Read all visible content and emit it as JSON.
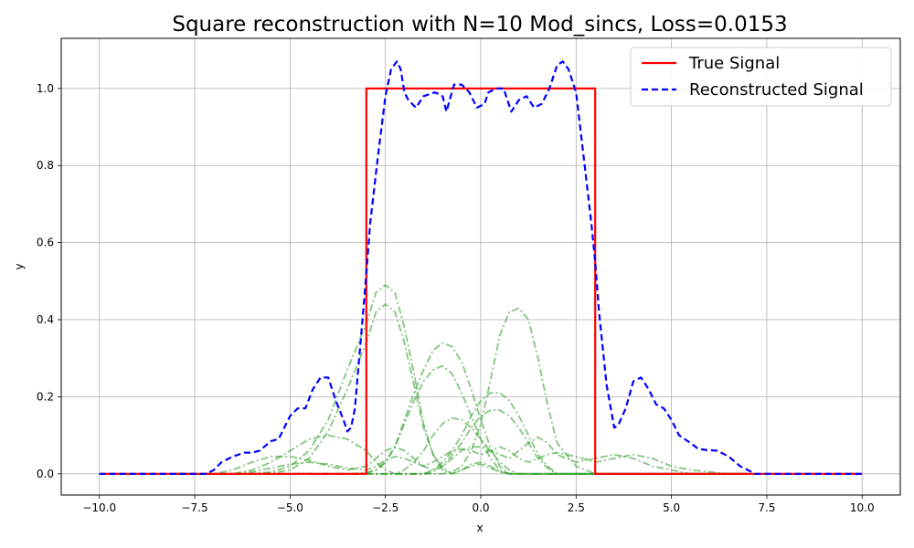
{
  "chart_data": {
    "type": "line",
    "title": "Square reconstruction with N=10 Mod_sincs, Loss=0.0153",
    "xlabel": "x",
    "ylabel": "y",
    "xlim": [
      -11.0,
      11.0
    ],
    "ylim": [
      -0.055,
      1.13
    ],
    "x_ticks": [
      -10.0,
      -7.5,
      -5.0,
      -2.5,
      0.0,
      2.5,
      5.0,
      7.5,
      10.0
    ],
    "x_tick_labels": [
      "−10.0",
      "−7.5",
      "−5.0",
      "−2.5",
      "0.0",
      "2.5",
      "5.0",
      "7.5",
      "10.0"
    ],
    "y_ticks": [
      0.0,
      0.2,
      0.4,
      0.6,
      0.8,
      1.0
    ],
    "y_tick_labels": [
      "0.0",
      "0.2",
      "0.4",
      "0.6",
      "0.8",
      "1.0"
    ],
    "grid": true,
    "legend_position": "top-right",
    "series": [
      {
        "name": "True Signal",
        "style": "solid",
        "color": "#ff0000",
        "x": [
          -10,
          -3,
          -3,
          3,
          3,
          10
        ],
        "y": [
          0,
          0,
          1,
          1,
          0,
          0
        ]
      },
      {
        "name": "Reconstructed Signal",
        "style": "dashed",
        "color": "#0000ff",
        "x": [
          -10,
          -9,
          -8,
          -7.2,
          -7.0,
          -6.8,
          -6.5,
          -6.2,
          -6.0,
          -5.8,
          -5.5,
          -5.3,
          -5.1,
          -5.0,
          -4.8,
          -4.6,
          -4.4,
          -4.2,
          -4.0,
          -3.8,
          -3.6,
          -3.5,
          -3.4,
          -3.3,
          -3.1,
          -3.0,
          -2.9,
          -2.7,
          -2.5,
          -2.35,
          -2.2,
          -2.1,
          -2.0,
          -1.9,
          -1.7,
          -1.5,
          -1.2,
          -1.0,
          -0.9,
          -0.7,
          -0.5,
          -0.3,
          -0.1,
          0.1,
          0.2,
          0.4,
          0.6,
          0.8,
          1.0,
          1.2,
          1.4,
          1.6,
          1.8,
          2.0,
          2.15,
          2.3,
          2.5,
          2.7,
          2.9,
          3.0,
          3.1,
          3.3,
          3.5,
          3.6,
          3.8,
          4.0,
          4.2,
          4.4,
          4.6,
          4.8,
          5.0,
          5.2,
          5.5,
          5.7,
          5.9,
          6.2,
          6.5,
          6.8,
          7.0,
          7.2,
          8,
          9,
          10
        ],
        "y": [
          0,
          0,
          0,
          0,
          0.01,
          0.03,
          0.045,
          0.055,
          0.055,
          0.06,
          0.085,
          0.09,
          0.13,
          0.15,
          0.17,
          0.17,
          0.22,
          0.25,
          0.25,
          0.19,
          0.14,
          0.11,
          0.12,
          0.17,
          0.4,
          0.52,
          0.65,
          0.82,
          0.98,
          1.05,
          1.07,
          1.05,
          0.99,
          0.97,
          0.95,
          0.98,
          0.99,
          0.98,
          0.94,
          1.01,
          1.01,
          0.99,
          0.95,
          0.96,
          0.99,
          1.0,
          1.0,
          0.94,
          0.97,
          0.98,
          0.95,
          0.96,
          1.0,
          1.06,
          1.07,
          1.05,
          0.99,
          0.82,
          0.65,
          0.55,
          0.42,
          0.23,
          0.12,
          0.125,
          0.17,
          0.24,
          0.25,
          0.22,
          0.18,
          0.17,
          0.14,
          0.1,
          0.08,
          0.065,
          0.062,
          0.06,
          0.045,
          0.02,
          0.01,
          0,
          0,
          0,
          0
        ],
        "linewidth": 2.2
      }
    ],
    "component_series": {
      "color": "#33a02c",
      "style": "dashdot",
      "count": 10,
      "components": [
        {
          "y": [
            0,
            0,
            0,
            0,
            0,
            0.005,
            0.02,
            0.06,
            0.14,
            0.27,
            0.39,
            0.47,
            0.49,
            0.47,
            0.38,
            0.26,
            0.13,
            0.05,
            0.015,
            0,
            0.01,
            0.025,
            0.03,
            0.02,
            0.005,
            0,
            0,
            0,
            0,
            0,
            0,
            0,
            0,
            0,
            0,
            0,
            0,
            0,
            0,
            0,
            0
          ]
        },
        {
          "y": [
            0,
            0,
            0,
            0,
            0,
            0.002,
            0.01,
            0.04,
            0.11,
            0.22,
            0.34,
            0.42,
            0.44,
            0.42,
            0.34,
            0.23,
            0.12,
            0.05,
            0.01,
            0,
            0.01,
            0.02,
            0.025,
            0.015,
            0.005,
            0,
            0,
            0,
            0,
            0,
            0,
            0,
            0,
            0,
            0,
            0,
            0,
            0,
            0,
            0,
            0
          ]
        },
        {
          "y": [
            0,
            0,
            0,
            0,
            0,
            0,
            0,
            0,
            0,
            0,
            0.002,
            0.01,
            0.03,
            0.07,
            0.14,
            0.21,
            0.27,
            0.32,
            0.34,
            0.33,
            0.29,
            0.22,
            0.14,
            0.07,
            0.02,
            0,
            0,
            0,
            0,
            0,
            0,
            0,
            0,
            0,
            0,
            0,
            0,
            0,
            0,
            0,
            0
          ]
        },
        {
          "y": [
            0,
            0,
            0,
            0,
            0,
            0,
            0,
            0,
            0,
            0,
            0.002,
            0.01,
            0.03,
            0.07,
            0.13,
            0.19,
            0.24,
            0.27,
            0.28,
            0.26,
            0.21,
            0.15,
            0.09,
            0.04,
            0.01,
            0,
            0,
            0,
            0,
            0,
            0,
            0,
            0,
            0,
            0,
            0,
            0,
            0,
            0,
            0,
            0
          ]
        },
        {
          "y": [
            0,
            0,
            0,
            0,
            0,
            0,
            0,
            0,
            0,
            0,
            0,
            0,
            0,
            0,
            0,
            0,
            0,
            0,
            0,
            0.005,
            0.02,
            0.06,
            0.13,
            0.24,
            0.36,
            0.42,
            0.43,
            0.4,
            0.3,
            0.18,
            0.08,
            0.02,
            0,
            0,
            0,
            0,
            0,
            0,
            0,
            0,
            0
          ]
        },
        {
          "y": [
            0,
            0,
            0,
            0,
            0,
            0,
            0,
            0,
            0,
            0,
            0,
            0,
            0,
            0,
            0,
            0,
            0,
            0.01,
            0.03,
            0.06,
            0.1,
            0.15,
            0.19,
            0.21,
            0.21,
            0.19,
            0.15,
            0.1,
            0.05,
            0.02,
            0,
            0,
            0,
            0,
            0,
            0,
            0,
            0,
            0,
            0,
            0
          ]
        },
        {
          "y": [
            0,
            0,
            0,
            0,
            0,
            0,
            0,
            0,
            0,
            0,
            0,
            0,
            0,
            0,
            0,
            0,
            0,
            0.005,
            0.02,
            0.05,
            0.08,
            0.12,
            0.15,
            0.165,
            0.165,
            0.15,
            0.12,
            0.08,
            0.04,
            0.015,
            0,
            0,
            0,
            0,
            0,
            0,
            0,
            0,
            0,
            0,
            0
          ]
        },
        {
          "y": [
            0,
            0,
            0,
            0,
            0.01,
            0.03,
            0.06,
            0.09,
            0.1,
            0.09,
            0.06,
            0.03,
            0.01,
            0,
            0.01,
            0.03,
            0.06,
            0.1,
            0.13,
            0.145,
            0.14,
            0.12,
            0.09,
            0.06,
            0.03,
            0.01,
            0,
            0,
            0,
            0,
            0,
            0,
            0,
            0,
            0,
            0,
            0,
            0,
            0,
            0,
            0
          ]
        },
        {
          "y": [
            0,
            0,
            0,
            0.01,
            0.03,
            0.045,
            0.045,
            0.035,
            0.02,
            0.01,
            0.02,
            0.04,
            0.06,
            0.07,
            0.06,
            0.04,
            0.02,
            0.01,
            0.02,
            0.04,
            0.06,
            0.07,
            0.07,
            0.06,
            0.05,
            0.04,
            0.06,
            0.08,
            0.095,
            0.08,
            0.05,
            0.03,
            0.04,
            0.05,
            0.04,
            0.02,
            0.01,
            0,
            0,
            0,
            0
          ]
        },
        {
          "y": [
            0,
            0,
            0,
            0,
            0.005,
            0.015,
            0.025,
            0.03,
            0.025,
            0.015,
            0.01,
            0.02,
            0.035,
            0.045,
            0.04,
            0.03,
            0.02,
            0.03,
            0.045,
            0.06,
            0.065,
            0.06,
            0.05,
            0.06,
            0.07,
            0.06,
            0.04,
            0.03,
            0.04,
            0.05,
            0.055,
            0.045,
            0.03,
            0.04,
            0.05,
            0.04,
            0.02,
            0.01,
            0.005,
            0,
            0
          ]
        }
      ],
      "x": [
        -8,
        -7.5,
        -7,
        -6.5,
        -6,
        -5.5,
        -5,
        -4.5,
        -4,
        -3.5,
        -3,
        -2.75,
        -2.5,
        -2.25,
        -2,
        -1.75,
        -1.5,
        -1.25,
        -1,
        -0.75,
        -0.5,
        -0.25,
        0,
        0.25,
        0.5,
        0.75,
        1,
        1.25,
        1.5,
        1.75,
        2,
        2.5,
        3,
        3.5,
        4,
        4.5,
        5,
        5.5,
        6,
        6.5,
        7
      ]
    }
  }
}
